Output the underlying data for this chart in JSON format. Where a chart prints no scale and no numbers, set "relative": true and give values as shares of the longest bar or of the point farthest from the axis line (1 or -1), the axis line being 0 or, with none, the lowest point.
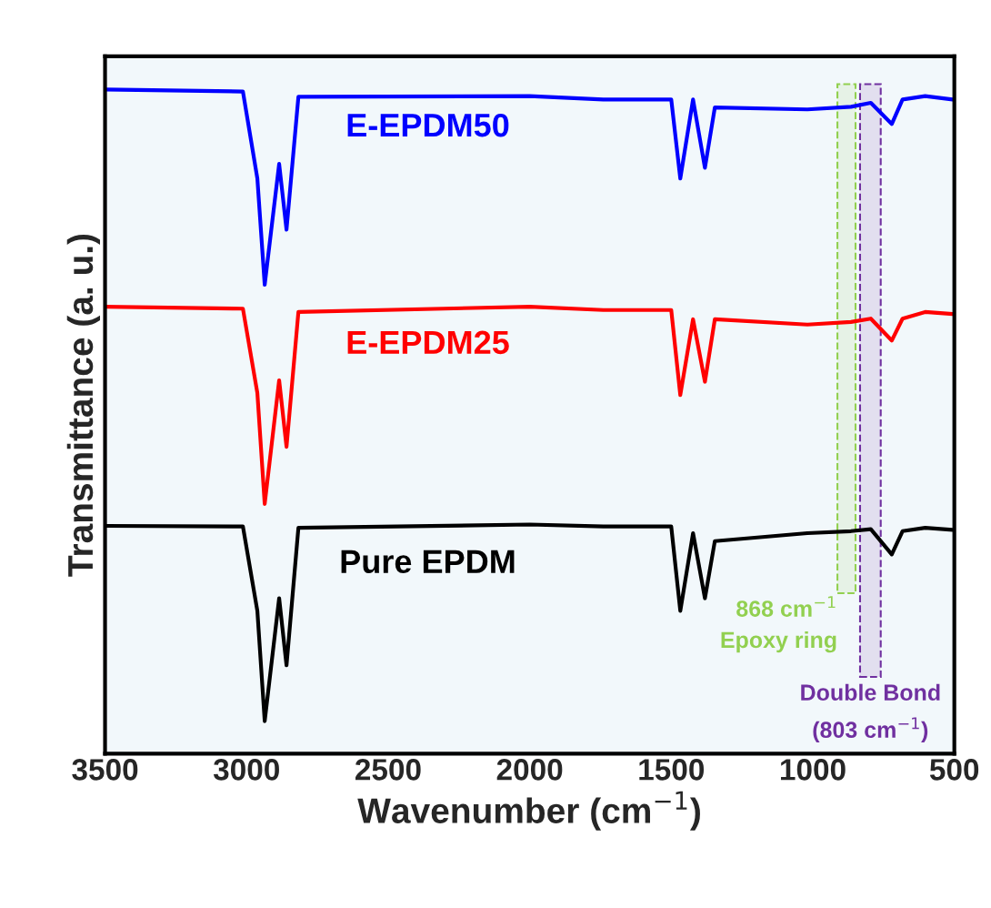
{
  "chart_data": {
    "type": "line",
    "relative": true,
    "xlabel": "Wavenumber (cm$^{−1}$)",
    "ylabel": "Transmittance (a. u.)",
    "x": [
      3500,
      3013,
      2962,
      2936,
      2885,
      2859,
      2817,
      2000,
      1740,
      1500,
      1468,
      1423,
      1381,
      1346,
      1019,
      865,
      795,
      721,
      683,
      603,
      506
    ],
    "series": [
      {
        "name": "E-EPDM50",
        "color": "#0000ff",
        "values": [
          1.0,
          0.997,
          0.866,
          0.706,
          0.888,
          0.789,
          0.989,
          0.99,
          0.985,
          0.985,
          0.866,
          0.985,
          0.882,
          0.973,
          0.97,
          0.974,
          0.98,
          0.948,
          0.985,
          0.99,
          0.985
        ]
      },
      {
        "name": "E-EPDM25",
        "color": "#ff0000",
        "values": [
          0.673,
          0.67,
          0.543,
          0.376,
          0.562,
          0.462,
          0.665,
          0.673,
          0.668,
          0.668,
          0.54,
          0.654,
          0.56,
          0.654,
          0.646,
          0.65,
          0.655,
          0.622,
          0.655,
          0.665,
          0.662
        ]
      },
      {
        "name": "Pure EPDM",
        "color": "#000000",
        "values": [
          0.343,
          0.342,
          0.215,
          0.049,
          0.234,
          0.133,
          0.34,
          0.345,
          0.342,
          0.342,
          0.215,
          0.332,
          0.234,
          0.32,
          0.332,
          0.335,
          0.338,
          0.3,
          0.335,
          0.34,
          0.337
        ]
      }
    ],
    "xlim": [
      3500,
      500
    ],
    "xticks": [
      3500,
      3000,
      2500,
      2000,
      1500,
      1000,
      500
    ],
    "tick_labels": "x",
    "grid": false,
    "legend": false,
    "bands": [
      {
        "axis": "x",
        "from": 913,
        "to": 849,
        "label": "868 cm$^{−1}$\nEpoxy ring",
        "color": "#92d050"
      },
      {
        "axis": "x",
        "from": 833,
        "to": 760,
        "label": "Double Bond\n(803 cm$^{−1}$)",
        "color": "#7030a0"
      }
    ]
  }
}
